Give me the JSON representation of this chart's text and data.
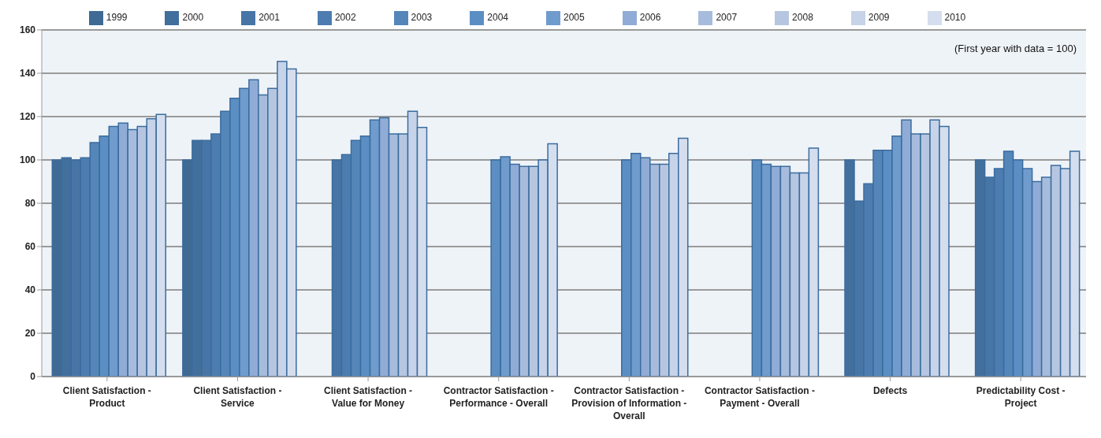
{
  "chart_data": {
    "type": "bar",
    "categories": [
      "Client  Satisfaction - Product",
      "Client Satisfaction - Service",
      "Client Satisfaction - Value for Money",
      "Contractor Satisfaction - Performance - Overall",
      "Contractor Satisfaction - Provision of Information - Overall",
      "Contractor Satisfaction - Payment - Overall",
      "Defects",
      "Predictability Cost  - Project"
    ],
    "series": [
      {
        "name": "1999",
        "color": "#3f6a94",
        "values": [
          100,
          100,
          null,
          null,
          null,
          null,
          null,
          null
        ]
      },
      {
        "name": "2000",
        "color": "#426f9c",
        "values": [
          101,
          109,
          null,
          null,
          null,
          null,
          100,
          100
        ]
      },
      {
        "name": "2001",
        "color": "#4775a6",
        "values": [
          100,
          109,
          100,
          null,
          null,
          null,
          81,
          92
        ]
      },
      {
        "name": "2002",
        "color": "#4d7db0",
        "values": [
          101,
          112,
          102.5,
          null,
          null,
          null,
          89,
          96
        ]
      },
      {
        "name": "2003",
        "color": "#5486ba",
        "values": [
          108,
          122.5,
          109,
          null,
          null,
          null,
          104.5,
          104
        ]
      },
      {
        "name": "2004",
        "color": "#5b8fc4",
        "values": [
          111,
          128.5,
          111,
          100,
          100,
          100,
          104.5,
          100
        ]
      },
      {
        "name": "2005",
        "color": "#6f9bcd",
        "values": [
          115.5,
          133,
          118.5,
          101.5,
          103,
          98,
          111,
          96
        ]
      },
      {
        "name": "2006",
        "color": "#90acd6",
        "values": [
          117,
          137,
          119.5,
          98,
          101,
          97,
          118.5,
          90
        ]
      },
      {
        "name": "2007",
        "color": "#a7bcdc",
        "values": [
          114,
          130,
          112,
          97,
          98,
          97,
          112,
          92
        ]
      },
      {
        "name": "2008",
        "color": "#b7c6e0",
        "values": [
          115.5,
          133,
          112,
          97,
          98,
          94,
          112,
          97.5
        ]
      },
      {
        "name": "2009",
        "color": "#c6d3e8",
        "values": [
          119,
          145.5,
          122.5,
          100,
          103,
          94,
          118.5,
          96
        ]
      },
      {
        "name": "2010",
        "color": "#d5deee",
        "values": [
          121,
          142,
          115,
          107.5,
          110,
          105.5,
          115.5,
          104
        ]
      }
    ],
    "ylim": [
      0,
      160
    ],
    "yticks": [
      0,
      20,
      40,
      60,
      80,
      100,
      120,
      140,
      160
    ],
    "grid": "y",
    "legend": "top",
    "annotations": [
      "(First year with data = 100)"
    ]
  }
}
